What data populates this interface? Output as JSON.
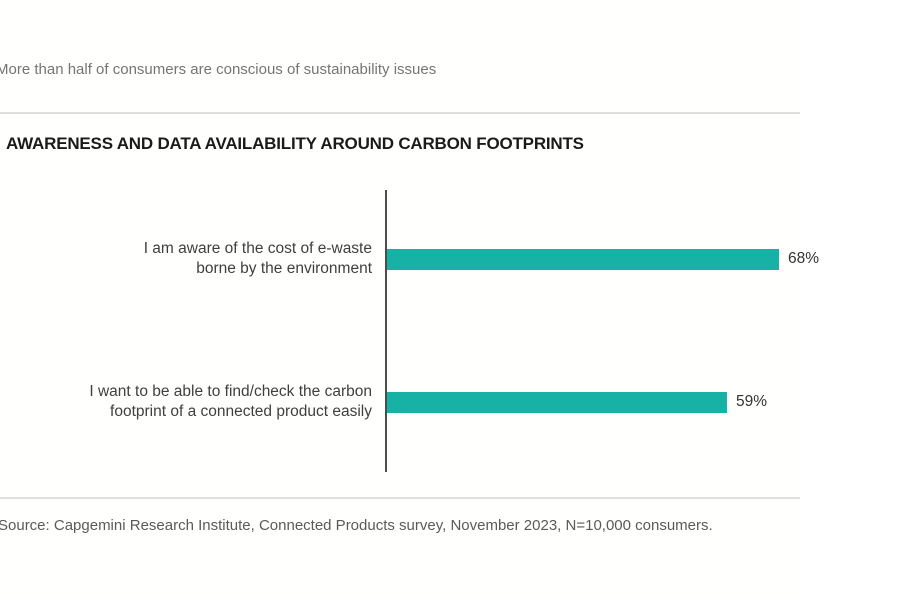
{
  "page": {
    "intro_text": "More than half of consumers are conscious of sustainability issues",
    "section_title": "AWARENESS AND DATA AVAILABILITY AROUND CARBON FOOTPRINTS",
    "source_note": "Source: Capgemini Research Institute, Connected Products survey, November 2023, N=10,000 consumers.",
    "background_color": "#fffffe"
  },
  "chart_data": {
    "type": "bar",
    "orientation": "horizontal",
    "title": "AWARENESS AND DATA AVAILABILITY AROUND CARBON FOOTPRINTS",
    "categories": [
      "I am aware of the cost of e-waste borne by the environment",
      "I want to be able to find/check the carbon footprint of a connected product easily"
    ],
    "category_lines": [
      [
        "I am aware of the cost of e-waste",
        "borne by the environment"
      ],
      [
        "I want to be able to find/check the carbon",
        "footprint of a connected product easily"
      ]
    ],
    "values": [
      68,
      59
    ],
    "value_labels": [
      "68%",
      "59%"
    ],
    "unit": "%",
    "xlim": [
      0,
      100
    ],
    "grid": false,
    "legend": false,
    "bar_color": "#17b1a5",
    "axis_line_color": "#4d4d4d",
    "value_label_color": "#333333"
  }
}
